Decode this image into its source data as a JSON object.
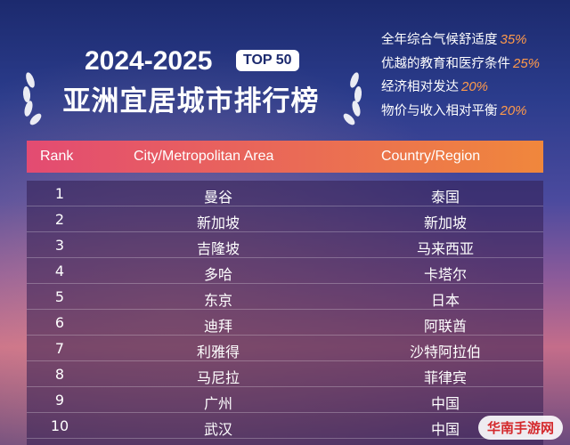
{
  "header": {
    "year": "2024-2025",
    "badge": "TOP 50",
    "title": "亚洲宜居城市排行榜"
  },
  "criteria": [
    {
      "name": "全年综合气候舒适度",
      "weight": "35%"
    },
    {
      "name": "优越的教育和医疗条件",
      "weight": "25%"
    },
    {
      "name": "经济相对发达",
      "weight": "20%"
    },
    {
      "name": "物价与收入相对平衡",
      "weight": "20%"
    }
  ],
  "table": {
    "columns": [
      "Rank",
      "City/Metropolitan Area",
      "Country/Region"
    ],
    "rows": [
      [
        "1",
        "曼谷",
        "泰国"
      ],
      [
        "2",
        "新加坡",
        "新加坡"
      ],
      [
        "3",
        "吉隆坡",
        "马来西亚"
      ],
      [
        "4",
        "多哈",
        "卡塔尔"
      ],
      [
        "5",
        "东京",
        "日本"
      ],
      [
        "6",
        "迪拜",
        "阿联酋"
      ],
      [
        "7",
        "利雅得",
        "沙特阿拉伯"
      ],
      [
        "8",
        "马尼拉",
        "菲律宾"
      ],
      [
        "9",
        "广州",
        "中国"
      ],
      [
        "10",
        "武汉",
        "中国"
      ]
    ]
  },
  "watermark": "华南手游网"
}
